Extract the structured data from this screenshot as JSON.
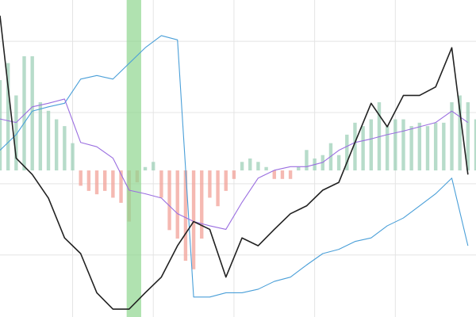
{
  "chart_data": {
    "type": "line",
    "xlim": [
      0.1,
      6.0
    ],
    "xticks": [
      1,
      2,
      3,
      4,
      5
    ],
    "ylim": [
      -1.87,
      2.58
    ],
    "yticks": [
      -1,
      0,
      1,
      2
    ],
    "y2lim": [
      -0.86,
      1
    ],
    "grid": true,
    "highlight": {
      "x": [
        1.67,
        1.85
      ],
      "color": "#8fd68f"
    },
    "series": [
      {
        "type": "bar",
        "axis": "y2",
        "color": "#9fd0b8",
        "negative_color": "#f2a198",
        "x": [
          0.1,
          0.2,
          0.3,
          0.4,
          0.5,
          0.6,
          0.7,
          0.8,
          0.9,
          1.0,
          1.1,
          1.2,
          1.3,
          1.4,
          1.5,
          1.6,
          1.7,
          1.8,
          1.9,
          2.0,
          2.1,
          2.2,
          2.3,
          2.4,
          2.5,
          2.6,
          2.7,
          2.8,
          2.9,
          3.0,
          3.1,
          3.2,
          3.3,
          3.4,
          3.5,
          3.6,
          3.7,
          3.8,
          3.9,
          4.0,
          4.1,
          4.2,
          4.3,
          4.4,
          4.5,
          4.6,
          4.7,
          4.8,
          4.9,
          5.0,
          5.1,
          5.2,
          5.3,
          5.4,
          5.5,
          5.6,
          5.7,
          5.8,
          5.9,
          6.0
        ],
        "values": [
          0.53,
          0.63,
          0.44,
          0.67,
          0.67,
          0.4,
          0.35,
          0.3,
          0.26,
          0.16,
          -0.09,
          -0.12,
          -0.14,
          -0.12,
          -0.16,
          -0.19,
          -0.3,
          -0.07,
          0.02,
          0.05,
          -0.16,
          -0.35,
          -0.4,
          -0.53,
          -0.58,
          -0.4,
          -0.16,
          -0.21,
          -0.12,
          -0.05,
          0.05,
          0.07,
          0.05,
          0.02,
          -0.05,
          -0.05,
          -0.05,
          0.02,
          0.12,
          0.07,
          0.09,
          0.16,
          0.09,
          0.21,
          0.28,
          0.26,
          0.3,
          0.4,
          0.26,
          0.3,
          0.3,
          0.26,
          0.28,
          0.26,
          0.28,
          0.28,
          0.4,
          0.44,
          0.4,
          0.3
        ]
      },
      {
        "type": "line",
        "color": "#4a9fd8",
        "x": [
          0.1,
          0.3,
          0.5,
          0.7,
          0.9,
          1.1,
          1.3,
          1.5,
          1.7,
          1.9,
          2.1,
          2.3,
          2.5,
          2.7,
          2.9,
          3.1,
          3.3,
          3.5,
          3.7,
          3.9,
          4.1,
          4.3,
          4.5,
          4.7,
          4.9,
          5.1,
          5.3,
          5.5,
          5.7,
          5.9
        ],
        "values": [
          0.47,
          0.69,
          1.02,
          1.08,
          1.13,
          1.47,
          1.52,
          1.47,
          1.69,
          1.91,
          2.08,
          2.02,
          -1.59,
          -1.59,
          -1.53,
          -1.53,
          -1.48,
          -1.37,
          -1.31,
          -1.14,
          -0.98,
          -0.92,
          -0.81,
          -0.76,
          -0.59,
          -0.48,
          -0.31,
          -0.14,
          0.08,
          -0.87
        ]
      },
      {
        "type": "line",
        "color": "#9a6ee0",
        "x": [
          0.1,
          0.3,
          0.5,
          0.7,
          0.9,
          1.1,
          1.3,
          1.5,
          1.7,
          1.9,
          2.1,
          2.3,
          2.5,
          2.7,
          2.9,
          3.1,
          3.3,
          3.5,
          3.7,
          3.9,
          4.1,
          4.3,
          4.5,
          4.7,
          4.9,
          5.1,
          5.3,
          5.5,
          5.7,
          5.9
        ],
        "values": [
          0.91,
          0.86,
          1.08,
          1.13,
          1.19,
          0.58,
          0.52,
          0.36,
          -0.09,
          -0.14,
          -0.2,
          -0.42,
          -0.53,
          -0.59,
          -0.64,
          -0.26,
          0.08,
          0.19,
          0.24,
          0.24,
          0.3,
          0.47,
          0.58,
          0.63,
          0.69,
          0.74,
          0.8,
          0.86,
          1.02,
          0.86
        ]
      },
      {
        "type": "line",
        "color": "#222222",
        "x": [
          0.1,
          0.3,
          0.5,
          0.7,
          0.9,
          1.1,
          1.3,
          1.5,
          1.7,
          1.9,
          2.1,
          2.3,
          2.5,
          2.7,
          2.9,
          3.1,
          3.3,
          3.5,
          3.7,
          3.9,
          4.1,
          4.3,
          4.5,
          4.7,
          4.9,
          5.1,
          5.3,
          5.5,
          5.7,
          5.9
        ],
        "values": [
          2.36,
          0.36,
          0.13,
          -0.2,
          -0.76,
          -0.98,
          -1.53,
          -1.76,
          -1.76,
          -1.53,
          -1.31,
          -0.87,
          -0.53,
          -0.64,
          -1.31,
          -0.76,
          -0.87,
          -0.64,
          -0.42,
          -0.31,
          -0.09,
          0.02,
          0.58,
          1.13,
          0.8,
          1.24,
          1.24,
          1.36,
          1.91,
          0.13
        ]
      }
    ]
  }
}
